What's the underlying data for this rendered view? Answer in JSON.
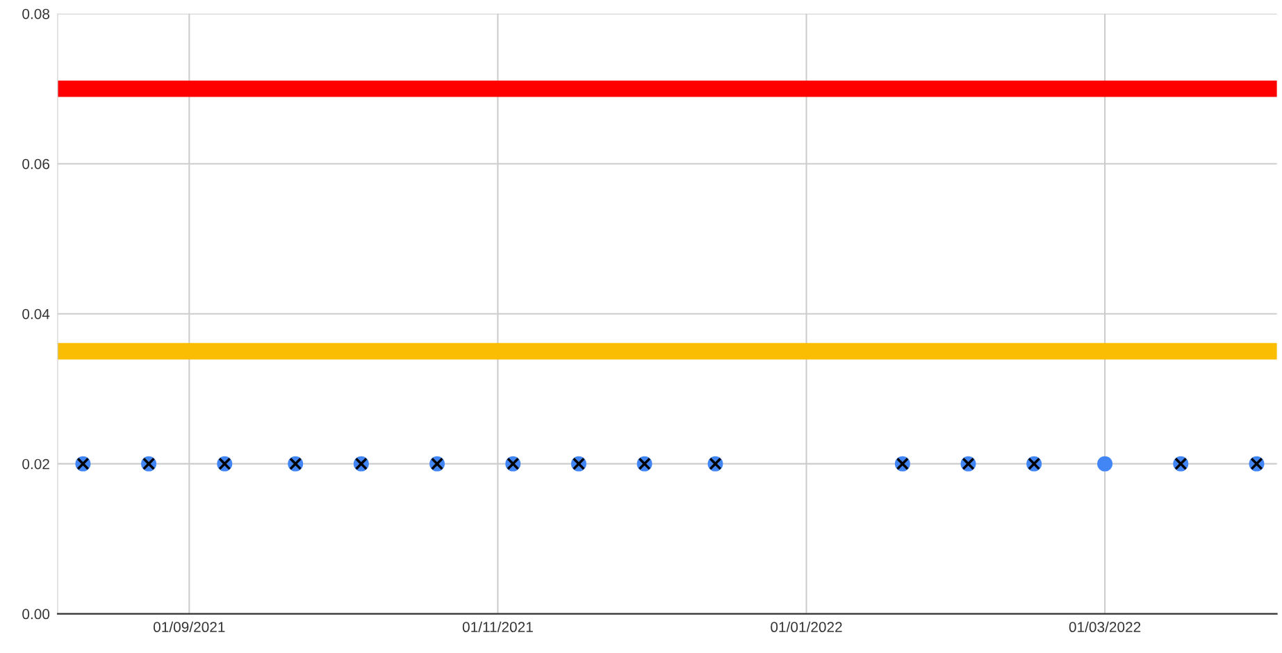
{
  "chart_data": {
    "type": "scatter",
    "x": [
      "2021-08-11",
      "2021-08-24",
      "2021-09-08",
      "2021-09-22",
      "2021-10-05",
      "2021-10-20",
      "2021-11-04",
      "2021-11-17",
      "2021-11-30",
      "2021-12-14",
      "2022-01-20",
      "2022-02-02",
      "2022-02-15",
      "2022-03-01",
      "2022-03-16",
      "2022-03-31"
    ],
    "series": [
      {
        "color": "#4285f4",
        "marker": "circle",
        "values": [
          0.02,
          0.02,
          0.02,
          0.02,
          0.02,
          0.02,
          0.02,
          0.02,
          0.02,
          0.02,
          0.02,
          0.02,
          0.02,
          0.02,
          0.02,
          0.02
        ]
      },
      {
        "color": "#000000",
        "marker": "cross",
        "values": [
          0.02,
          0.02,
          0.02,
          0.02,
          0.02,
          0.02,
          0.02,
          0.02,
          0.02,
          0.02,
          0.02,
          0.02,
          0.02,
          null,
          0.02,
          0.02
        ]
      }
    ],
    "ref_lines": [
      {
        "axis": "y",
        "value": 0.07,
        "color": "#ff0000"
      },
      {
        "axis": "y",
        "value": 0.035,
        "color": "#fbbc04"
      }
    ],
    "xlim": [
      "2021-08-06",
      "2022-04-04"
    ],
    "xticks": [
      {
        "value": "2021-09-01",
        "label": "01/09/2021"
      },
      {
        "value": "2021-11-01",
        "label": "01/11/2021"
      },
      {
        "value": "2022-01-01",
        "label": "01/01/2022"
      },
      {
        "value": "2022-03-01",
        "label": "01/03/2022"
      }
    ],
    "ylim": [
      0,
      0.08
    ],
    "yticks": [
      {
        "value": 0,
        "label": "0.00"
      },
      {
        "value": 0.02,
        "label": "0.02"
      },
      {
        "value": 0.04,
        "label": "0.04"
      },
      {
        "value": 0.06,
        "label": "0.06"
      },
      {
        "value": 0.08,
        "label": "0.08"
      }
    ],
    "grid": true
  }
}
